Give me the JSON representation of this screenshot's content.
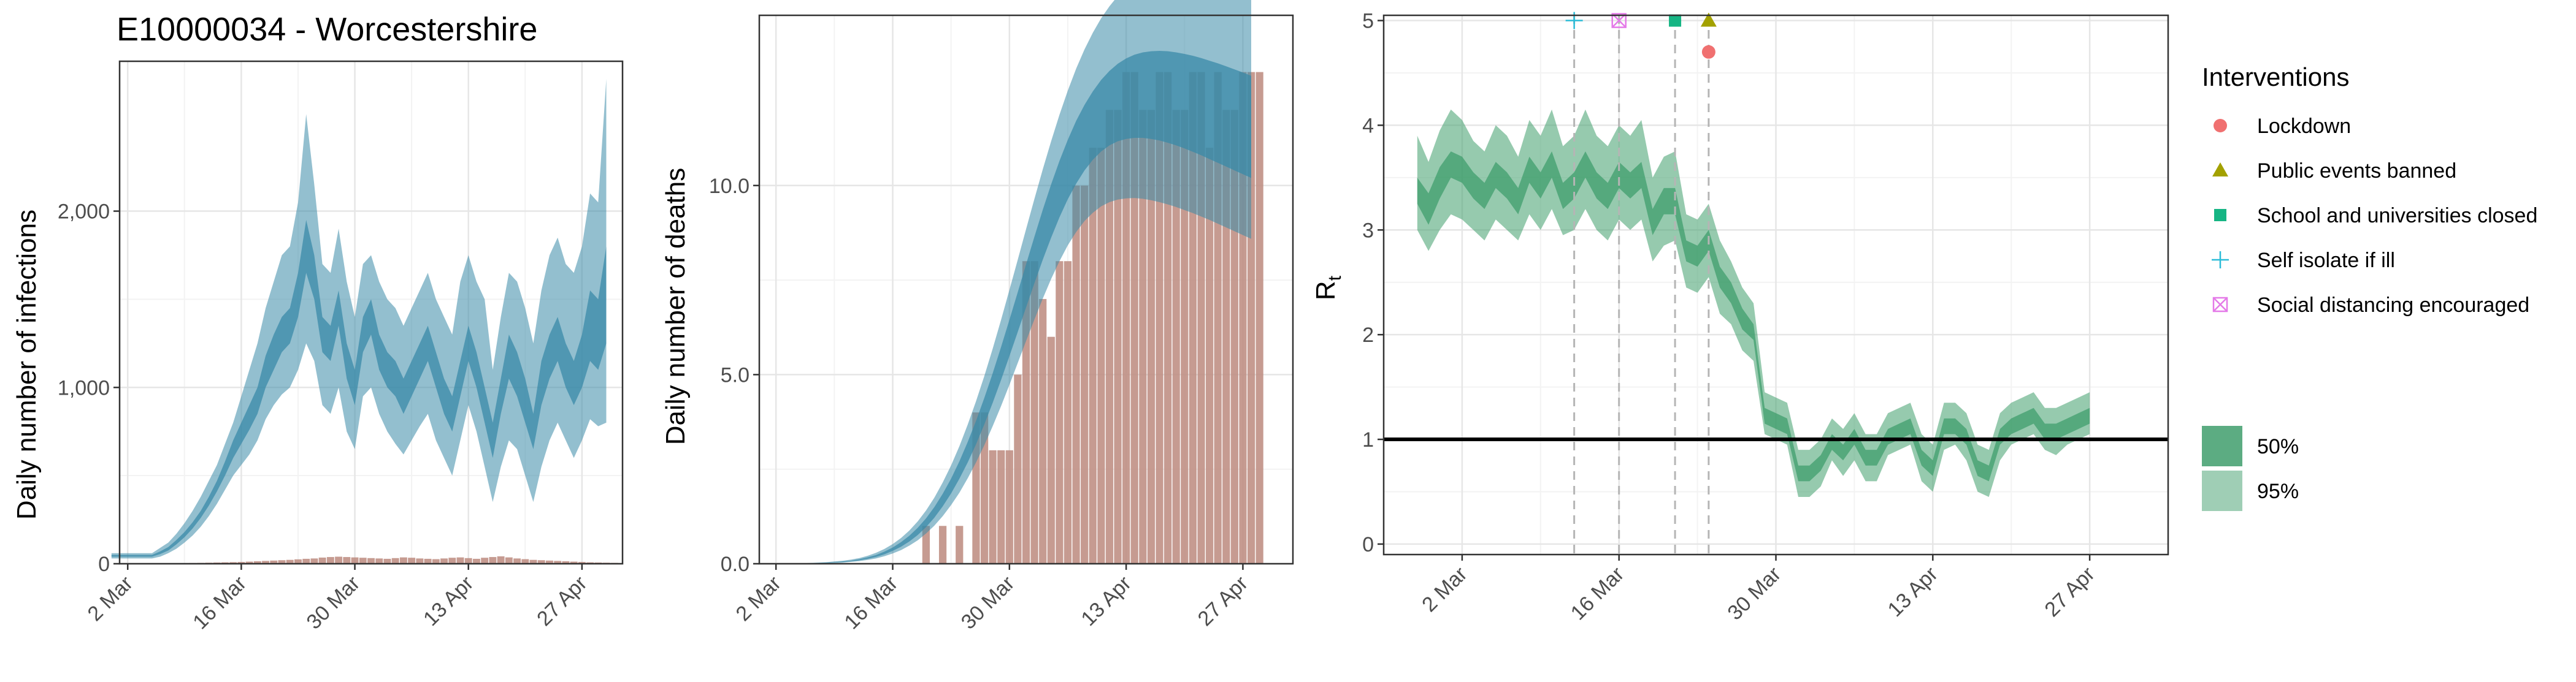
{
  "title": "E10000034 - Worcestershire",
  "colors": {
    "infection_band": "#3a8aa8",
    "death_bar": "#bc8a7e",
    "rt_band": "#3f9e6c",
    "lockdown": "#f07070",
    "public_events": "#a3a100",
    "school": "#16b584",
    "self_isolate": "#2bbcd8",
    "social_distancing": "#e47ae8",
    "threshold": "#000000",
    "vline": "#b5b5b5",
    "grid_major": "#e6e6e6",
    "grid_minor": "#f3f3f3",
    "panel_border": "#333333"
  },
  "chart_data": [
    {
      "type": "area",
      "panel": "infections",
      "xlabel": "",
      "ylabel": "Daily number of infections",
      "xlim": [
        1,
        63
      ],
      "ylim": [
        0,
        2850
      ],
      "xticks": [
        {
          "x": 2,
          "label": "2 Mar"
        },
        {
          "x": 16,
          "label": "16 Mar"
        },
        {
          "x": 30,
          "label": "30 Mar"
        },
        {
          "x": 44,
          "label": "13 Apr"
        },
        {
          "x": 58,
          "label": "27 Apr"
        }
      ],
      "yticks": [
        {
          "y": 0,
          "label": "0"
        },
        {
          "y": 1000,
          "label": "1,000"
        },
        {
          "y": 2000,
          "label": "2,000"
        }
      ],
      "x_start": 0,
      "lo95": [
        30,
        30,
        30,
        30,
        30,
        30,
        40,
        60,
        85,
        120,
        160,
        210,
        270,
        340,
        420,
        500,
        560,
        620,
        700,
        820,
        900,
        960,
        1000,
        1100,
        1250,
        1150,
        900,
        850,
        1000,
        750,
        650,
        950,
        1000,
        850,
        750,
        680,
        620,
        700,
        780,
        850,
        700,
        600,
        500,
        700,
        900,
        750,
        550,
        350,
        550,
        700,
        650,
        500,
        350,
        550,
        700,
        800,
        700,
        600,
        700,
        820,
        780,
        800
      ],
      "lo50": [
        40,
        40,
        40,
        40,
        40,
        40,
        55,
        75,
        110,
        150,
        200,
        260,
        330,
        410,
        500,
        600,
        680,
        760,
        850,
        1000,
        1100,
        1200,
        1250,
        1400,
        1650,
        1500,
        1200,
        1150,
        1350,
        1050,
        900,
        1200,
        1300,
        1100,
        1000,
        950,
        850,
        950,
        1050,
        1150,
        1000,
        850,
        750,
        950,
        1150,
        1000,
        800,
        600,
        850,
        1050,
        950,
        800,
        650,
        900,
        1050,
        1150,
        1000,
        900,
        1000,
        1150,
        1100,
        1250
      ],
      "hi50": [
        50,
        50,
        50,
        50,
        50,
        50,
        70,
        95,
        135,
        180,
        235,
        300,
        380,
        470,
        580,
        700,
        800,
        900,
        1000,
        1180,
        1300,
        1400,
        1450,
        1650,
        1950,
        1750,
        1400,
        1350,
        1550,
        1250,
        1100,
        1400,
        1500,
        1300,
        1200,
        1150,
        1050,
        1150,
        1250,
        1350,
        1200,
        1050,
        950,
        1150,
        1350,
        1200,
        1000,
        800,
        1050,
        1300,
        1200,
        1050,
        850,
        1150,
        1300,
        1400,
        1250,
        1150,
        1300,
        1550,
        1500,
        1800
      ],
      "hi95": [
        60,
        60,
        60,
        60,
        60,
        60,
        90,
        120,
        170,
        230,
        300,
        380,
        470,
        560,
        680,
        800,
        950,
        1100,
        1250,
        1450,
        1600,
        1750,
        1800,
        2050,
        2550,
        2150,
        1700,
        1650,
        1900,
        1600,
        1400,
        1700,
        1750,
        1600,
        1500,
        1450,
        1350,
        1450,
        1550,
        1650,
        1500,
        1400,
        1300,
        1600,
        1750,
        1600,
        1500,
        1100,
        1400,
        1650,
        1600,
        1450,
        1250,
        1550,
        1750,
        1850,
        1700,
        1650,
        1800,
        2100,
        2050,
        2750
      ],
      "bars_x_start": 8,
      "bars": [
        2,
        3,
        4,
        5,
        6,
        7,
        8,
        9,
        10,
        12,
        14,
        16,
        18,
        20,
        22,
        25,
        28,
        30,
        35,
        38,
        40,
        38,
        36,
        34,
        32,
        30,
        28,
        32,
        36,
        34,
        30,
        28,
        26,
        30,
        34,
        36,
        32,
        28,
        34,
        38,
        42,
        36,
        30,
        26,
        22,
        20,
        18,
        16,
        14,
        12,
        10,
        8,
        7,
        6,
        5
      ]
    },
    {
      "type": "bar",
      "panel": "deaths",
      "xlabel": "",
      "ylabel": "Daily number of deaths",
      "xlim": [
        0,
        64
      ],
      "ylim": [
        0,
        14.5
      ],
      "xticks": [
        {
          "x": 2,
          "label": "2 Mar"
        },
        {
          "x": 16,
          "label": "16 Mar"
        },
        {
          "x": 30,
          "label": "30 Mar"
        },
        {
          "x": 44,
          "label": "13 Apr"
        },
        {
          "x": 58,
          "label": "27 Apr"
        }
      ],
      "yticks": [
        {
          "y": 0,
          "label": "0.0"
        },
        {
          "y": 5,
          "label": "5.0"
        },
        {
          "y": 10,
          "label": "10.0"
        }
      ],
      "bars_x_start": 20,
      "bars": [
        1,
        0,
        1,
        0,
        1,
        0,
        4,
        4,
        3,
        3,
        3,
        5,
        8,
        8,
        7,
        6,
        8,
        8,
        10,
        10,
        11,
        11,
        12,
        12,
        13,
        13,
        12,
        12,
        13,
        13,
        12,
        12,
        13,
        13,
        11,
        13,
        12,
        12,
        13,
        13,
        13
      ],
      "curve_x_start": 2,
      "lo95": [
        0.0,
        0.0,
        0.0,
        0.0,
        0.0,
        0.01,
        0.01,
        0.02,
        0.03,
        0.05,
        0.07,
        0.1,
        0.14,
        0.2,
        0.27,
        0.36,
        0.48,
        0.62,
        0.8,
        1.01,
        1.26,
        1.55,
        1.88,
        2.26,
        2.68,
        3.14,
        3.64,
        4.17,
        4.73,
        5.31,
        5.89,
        6.46,
        7.01,
        7.53,
        8.0,
        8.42,
        8.77,
        9.06,
        9.28,
        9.45,
        9.56,
        9.63,
        9.66,
        9.67,
        9.65,
        9.61,
        9.56,
        9.5,
        9.43,
        9.35,
        9.27,
        9.18,
        9.09,
        8.99,
        8.89,
        8.79,
        8.69,
        8.59
      ],
      "lo50": [
        0.0,
        0.0,
        0.0,
        0.0,
        0.01,
        0.01,
        0.02,
        0.03,
        0.04,
        0.06,
        0.09,
        0.13,
        0.18,
        0.25,
        0.34,
        0.45,
        0.59,
        0.76,
        0.97,
        1.22,
        1.52,
        1.86,
        2.25,
        2.68,
        3.16,
        3.69,
        4.26,
        4.86,
        5.49,
        6.13,
        6.78,
        7.42,
        8.04,
        8.62,
        9.16,
        9.64,
        10.05,
        10.4,
        10.68,
        10.9,
        11.06,
        11.17,
        11.23,
        11.26,
        11.26,
        11.23,
        11.19,
        11.13,
        11.06,
        10.98,
        10.89,
        10.8,
        10.7,
        10.6,
        10.5,
        10.4,
        10.3,
        10.2
      ],
      "hi50": [
        0.0,
        0.0,
        0.0,
        0.01,
        0.01,
        0.02,
        0.03,
        0.04,
        0.06,
        0.08,
        0.12,
        0.17,
        0.23,
        0.32,
        0.43,
        0.57,
        0.74,
        0.95,
        1.2,
        1.5,
        1.85,
        2.25,
        2.71,
        3.22,
        3.78,
        4.39,
        5.04,
        5.73,
        6.45,
        7.18,
        7.92,
        8.65,
        9.36,
        10.03,
        10.65,
        11.21,
        11.71,
        12.13,
        12.49,
        12.79,
        13.03,
        13.22,
        13.36,
        13.46,
        13.52,
        13.55,
        13.56,
        13.55,
        13.52,
        13.48,
        13.43,
        13.37,
        13.3,
        13.23,
        13.15,
        13.07,
        12.99,
        12.9
      ],
      "hi95": [
        0.0,
        0.0,
        0.01,
        0.01,
        0.02,
        0.03,
        0.04,
        0.06,
        0.08,
        0.11,
        0.15,
        0.21,
        0.29,
        0.39,
        0.52,
        0.68,
        0.88,
        1.12,
        1.41,
        1.75,
        2.15,
        2.6,
        3.11,
        3.68,
        4.3,
        4.97,
        5.69,
        6.45,
        7.24,
        8.04,
        8.85,
        9.65,
        10.43,
        11.17,
        11.87,
        12.51,
        13.09,
        13.6,
        14.04,
        14.42,
        14.74,
        15.01,
        15.23,
        15.41,
        15.55,
        15.66,
        15.74,
        15.8,
        15.84,
        15.86,
        15.87,
        15.87,
        15.86,
        15.84,
        15.82,
        15.79,
        15.76,
        15.73
      ]
    },
    {
      "type": "line",
      "panel": "rt",
      "xlabel": "",
      "ylabel": "R",
      "ylabel_subscript": "t",
      "xlim": [
        -5,
        65
      ],
      "ylim": [
        -0.1,
        5.05
      ],
      "xticks": [
        {
          "x": 2,
          "label": "2 Mar"
        },
        {
          "x": 16,
          "label": "16 Mar"
        },
        {
          "x": 30,
          "label": "30 Mar"
        },
        {
          "x": 44,
          "label": "13 Apr"
        },
        {
          "x": 58,
          "label": "27 Apr"
        }
      ],
      "yticks": [
        {
          "y": 0,
          "label": "0"
        },
        {
          "y": 1,
          "label": "1"
        },
        {
          "y": 2,
          "label": "2"
        },
        {
          "y": 3,
          "label": "3"
        },
        {
          "y": 4,
          "label": "4"
        },
        {
          "y": 5,
          "label": "5"
        }
      ],
      "threshold": 1,
      "x_start": -2,
      "lo95": [
        3.0,
        2.8,
        3.0,
        3.15,
        3.1,
        3.0,
        2.9,
        3.1,
        3.0,
        2.9,
        3.15,
        3.0,
        3.2,
        2.95,
        3.0,
        3.2,
        3.0,
        2.9,
        3.1,
        3.0,
        3.1,
        2.7,
        2.85,
        2.9,
        2.45,
        2.4,
        2.55,
        2.2,
        2.1,
        1.85,
        1.75,
        1.05,
        1.0,
        0.95,
        0.45,
        0.45,
        0.55,
        0.8,
        0.65,
        0.8,
        0.6,
        0.6,
        0.85,
        0.9,
        0.95,
        0.6,
        0.5,
        0.9,
        0.95,
        0.8,
        0.5,
        0.45,
        0.8,
        0.95,
        1.0,
        1.05,
        0.9,
        0.85,
        0.95,
        1.0,
        1.05
      ],
      "lo50": [
        3.25,
        3.05,
        3.3,
        3.5,
        3.45,
        3.3,
        3.2,
        3.4,
        3.3,
        3.15,
        3.45,
        3.3,
        3.5,
        3.2,
        3.3,
        3.5,
        3.3,
        3.2,
        3.4,
        3.3,
        3.4,
        2.95,
        3.15,
        3.15,
        2.7,
        2.65,
        2.8,
        2.45,
        2.3,
        2.05,
        1.95,
        1.15,
        1.1,
        1.05,
        0.6,
        0.6,
        0.7,
        0.9,
        0.8,
        0.95,
        0.75,
        0.75,
        0.95,
        1.0,
        1.05,
        0.75,
        0.65,
        1.05,
        1.05,
        0.95,
        0.65,
        0.6,
        0.95,
        1.05,
        1.1,
        1.15,
        1.0,
        1.0,
        1.05,
        1.1,
        1.15
      ],
      "hi50": [
        3.5,
        3.35,
        3.6,
        3.75,
        3.7,
        3.55,
        3.45,
        3.65,
        3.55,
        3.4,
        3.7,
        3.55,
        3.75,
        3.45,
        3.55,
        3.75,
        3.55,
        3.45,
        3.65,
        3.55,
        3.65,
        3.2,
        3.4,
        3.4,
        2.9,
        2.85,
        3.0,
        2.65,
        2.5,
        2.25,
        2.1,
        1.3,
        1.25,
        1.2,
        0.75,
        0.75,
        0.85,
        1.05,
        0.95,
        1.1,
        0.9,
        0.9,
        1.1,
        1.15,
        1.2,
        0.9,
        0.8,
        1.2,
        1.2,
        1.1,
        0.8,
        0.75,
        1.1,
        1.2,
        1.25,
        1.3,
        1.15,
        1.15,
        1.2,
        1.25,
        1.3
      ],
      "hi95": [
        3.9,
        3.65,
        3.95,
        4.15,
        4.05,
        3.85,
        3.75,
        4.0,
        3.9,
        3.7,
        4.05,
        3.9,
        4.15,
        3.8,
        3.9,
        4.15,
        3.9,
        3.8,
        4.0,
        3.9,
        4.05,
        3.5,
        3.7,
        3.75,
        3.15,
        3.1,
        3.25,
        2.9,
        2.7,
        2.45,
        2.3,
        1.45,
        1.4,
        1.35,
        0.9,
        0.9,
        1.0,
        1.2,
        1.1,
        1.25,
        1.05,
        1.05,
        1.25,
        1.3,
        1.35,
        1.05,
        0.95,
        1.35,
        1.35,
        1.25,
        0.95,
        0.9,
        1.25,
        1.35,
        1.4,
        1.45,
        1.3,
        1.3,
        1.35,
        1.4,
        1.45
      ],
      "interventions": [
        {
          "name": "Self isolate if ill",
          "x": 12,
          "y": 5,
          "shape": "plus",
          "color": "#2bbcd8"
        },
        {
          "name": "Social distancing encouraged",
          "x": 16,
          "y": 5,
          "shape": "boxx",
          "color": "#e47ae8"
        },
        {
          "name": "School and universities closed",
          "x": 21,
          "y": 5,
          "shape": "square",
          "color": "#16b584"
        },
        {
          "name": "Public events banned",
          "x": 24,
          "y": 5,
          "shape": "triangle",
          "color": "#a3a100"
        },
        {
          "name": "Lockdown",
          "x": 24,
          "y": 4.7,
          "shape": "circle",
          "color": "#f07070"
        }
      ]
    }
  ],
  "legend": {
    "interventions_title": "Interventions",
    "interventions": [
      {
        "label": "Lockdown",
        "shape": "circle",
        "color": "#f07070"
      },
      {
        "label": "Public events banned",
        "shape": "triangle",
        "color": "#a3a100"
      },
      {
        "label": "School and universities closed",
        "shape": "square",
        "color": "#16b584"
      },
      {
        "label": "Self isolate if ill",
        "shape": "plus",
        "color": "#2bbcd8"
      },
      {
        "label": "Social distancing encouraged",
        "shape": "boxx",
        "color": "#e47ae8"
      }
    ],
    "intervals": [
      {
        "label": "50%",
        "color": "#3f9e6c",
        "opacity": 0.85
      },
      {
        "label": "95%",
        "color": "#3f9e6c",
        "opacity": 0.5
      }
    ]
  }
}
